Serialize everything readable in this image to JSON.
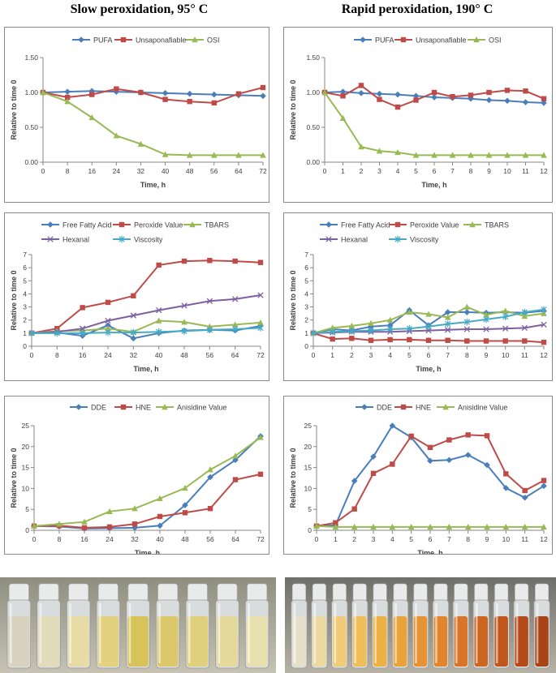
{
  "titles": {
    "left": "Slow peroxidation, 95° C",
    "right": "Rapid peroxidation, 190° C"
  },
  "chart_data": [
    {
      "id": "slow-1",
      "type": "line",
      "xlabel": "Time, h",
      "ylabel": "Relative to time 0",
      "categories": [
        "0",
        "8",
        "16",
        "24",
        "32",
        "40",
        "48",
        "56",
        "64",
        "72"
      ],
      "ylim": [
        0,
        1.5
      ],
      "yticks": [
        "0.00",
        "0.50",
        "1.00",
        "1.50"
      ],
      "series": [
        {
          "name": "PUFA",
          "color": "#4a7ebb",
          "marker": "diamond",
          "values": [
            1.0,
            1.01,
            1.02,
            1.01,
            1.0,
            0.99,
            0.98,
            0.97,
            0.96,
            0.95
          ]
        },
        {
          "name": "Unsaponafiable",
          "color": "#be4b48",
          "marker": "square",
          "values": [
            1.0,
            0.93,
            0.97,
            1.05,
            1.0,
            0.9,
            0.87,
            0.85,
            0.98,
            1.07
          ]
        },
        {
          "name": "OSI",
          "color": "#98b954",
          "marker": "triangle",
          "values": [
            1.0,
            0.87,
            0.64,
            0.38,
            0.26,
            0.11,
            0.1,
            0.1,
            0.1,
            0.1
          ]
        }
      ]
    },
    {
      "id": "rapid-1",
      "type": "line",
      "xlabel": "Time, h",
      "ylabel": "Relative to time 0",
      "categories": [
        "0",
        "1",
        "2",
        "3",
        "4",
        "5",
        "6",
        "7",
        "8",
        "9",
        "10",
        "11",
        "12"
      ],
      "ylim": [
        0,
        1.5
      ],
      "yticks": [
        "0.00",
        "0.50",
        "1.00",
        "1.50"
      ],
      "series": [
        {
          "name": "PUFA",
          "color": "#4a7ebb",
          "marker": "diamond",
          "values": [
            1.0,
            1.01,
            0.99,
            0.98,
            0.97,
            0.95,
            0.93,
            0.92,
            0.91,
            0.89,
            0.88,
            0.86,
            0.85
          ]
        },
        {
          "name": "Unsaponafiable",
          "color": "#be4b48",
          "marker": "square",
          "values": [
            1.0,
            0.95,
            1.1,
            0.9,
            0.79,
            0.89,
            1.0,
            0.94,
            0.96,
            1.0,
            1.03,
            1.02,
            0.91
          ]
        },
        {
          "name": "OSI",
          "color": "#98b954",
          "marker": "triangle",
          "values": [
            1.0,
            0.63,
            0.22,
            0.16,
            0.14,
            0.1,
            0.1,
            0.1,
            0.1,
            0.1,
            0.1,
            0.1,
            0.1
          ]
        }
      ]
    },
    {
      "id": "slow-2",
      "type": "line",
      "xlabel": "Time, h",
      "ylabel": "Relative to time 0",
      "categories": [
        "0",
        "8",
        "16",
        "24",
        "32",
        "40",
        "48",
        "56",
        "64",
        "72"
      ],
      "ylim": [
        0,
        7
      ],
      "yticks": [
        "0",
        "1",
        "2",
        "3",
        "4",
        "5",
        "6",
        "7"
      ],
      "series": [
        {
          "name": "Free Fatty Acid",
          "color": "#4a7ebb",
          "marker": "diamond",
          "values": [
            1.0,
            1.05,
            0.8,
            1.6,
            0.6,
            1.0,
            1.2,
            1.25,
            1.2,
            1.55
          ]
        },
        {
          "name": "Peroxide Value",
          "color": "#be4b48",
          "marker": "square",
          "values": [
            1.0,
            1.35,
            2.95,
            3.35,
            3.85,
            6.2,
            6.5,
            6.55,
            6.5,
            6.4
          ]
        },
        {
          "name": "TBARS",
          "color": "#98b954",
          "marker": "triangle",
          "values": [
            1.0,
            1.15,
            1.2,
            1.35,
            1.1,
            1.95,
            1.85,
            1.5,
            1.65,
            1.8
          ]
        },
        {
          "name": "Hexanal",
          "color": "#7d60a0",
          "marker": "x",
          "values": [
            1.0,
            1.1,
            1.35,
            1.95,
            2.35,
            2.75,
            3.1,
            3.45,
            3.6,
            3.9
          ]
        },
        {
          "name": "Viscosity",
          "color": "#46aac5",
          "marker": "star",
          "values": [
            1.0,
            1.0,
            1.0,
            1.05,
            1.05,
            1.1,
            1.15,
            1.25,
            1.3,
            1.4
          ]
        }
      ]
    },
    {
      "id": "rapid-2",
      "type": "line",
      "xlabel": "Time, h",
      "ylabel": "Relative to time 0",
      "categories": [
        "0",
        "1",
        "2",
        "3",
        "4",
        "5",
        "6",
        "7",
        "8",
        "9",
        "10",
        "11",
        "12"
      ],
      "ylim": [
        0,
        7
      ],
      "yticks": [
        "0",
        "1",
        "2",
        "3",
        "4",
        "5",
        "6",
        "7"
      ],
      "series": [
        {
          "name": "Free Fatty Acid",
          "color": "#4a7ebb",
          "marker": "diamond",
          "values": [
            1.0,
            1.3,
            1.2,
            1.5,
            1.6,
            2.75,
            1.6,
            2.6,
            2.6,
            2.55,
            2.6,
            2.55,
            2.7
          ]
        },
        {
          "name": "Peroxide Value",
          "color": "#be4b48",
          "marker": "square",
          "values": [
            1.0,
            0.55,
            0.6,
            0.45,
            0.5,
            0.5,
            0.45,
            0.45,
            0.4,
            0.4,
            0.4,
            0.4,
            0.3
          ]
        },
        {
          "name": "TBARS",
          "color": "#98b954",
          "marker": "triangle",
          "values": [
            1.0,
            1.4,
            1.55,
            1.75,
            2.0,
            2.6,
            2.45,
            2.2,
            3.0,
            2.4,
            2.7,
            2.3,
            2.5
          ]
        },
        {
          "name": "Hexanal",
          "color": "#7d60a0",
          "marker": "x",
          "values": [
            1.0,
            1.05,
            1.1,
            1.1,
            1.1,
            1.15,
            1.2,
            1.25,
            1.3,
            1.3,
            1.35,
            1.4,
            1.65
          ]
        },
        {
          "name": "Viscosity",
          "color": "#46aac5",
          "marker": "star",
          "values": [
            1.0,
            1.1,
            1.15,
            1.2,
            1.3,
            1.35,
            1.5,
            1.7,
            1.85,
            2.05,
            2.25,
            2.6,
            2.8
          ]
        }
      ]
    },
    {
      "id": "slow-3",
      "type": "line",
      "xlabel": "Time, h",
      "ylabel": "Relative to time 0",
      "categories": [
        "0",
        "8",
        "16",
        "24",
        "32",
        "40",
        "48",
        "56",
        "64",
        "72"
      ],
      "ylim": [
        0,
        25
      ],
      "yticks": [
        "0",
        "5",
        "10",
        "15",
        "20",
        "25"
      ],
      "series": [
        {
          "name": "DDE",
          "color": "#4a7ebb",
          "marker": "diamond",
          "values": [
            1.0,
            0.9,
            0.4,
            0.5,
            0.6,
            1.1,
            6.0,
            12.7,
            16.8,
            22.5
          ]
        },
        {
          "name": "HNE",
          "color": "#be4b48",
          "marker": "square",
          "values": [
            1.0,
            1.1,
            0.6,
            0.8,
            1.5,
            3.3,
            4.2,
            5.2,
            12.1,
            13.4
          ]
        },
        {
          "name": "Anisidine Value",
          "color": "#98b954",
          "marker": "triangle",
          "values": [
            1.0,
            1.5,
            2.0,
            4.5,
            5.2,
            7.6,
            10.1,
            14.5,
            17.8,
            22.2
          ]
        }
      ]
    },
    {
      "id": "rapid-3",
      "type": "line",
      "xlabel": "Time, h",
      "ylabel": "Relative to time 0",
      "categories": [
        "0",
        "1",
        "2",
        "3",
        "4",
        "5",
        "6",
        "7",
        "8",
        "9",
        "10",
        "11",
        "12"
      ],
      "ylim": [
        0,
        25
      ],
      "yticks": [
        "0",
        "5",
        "10",
        "15",
        "20",
        "25"
      ],
      "series": [
        {
          "name": "DDE",
          "color": "#4a7ebb",
          "marker": "diamond",
          "values": [
            1.0,
            1.2,
            11.8,
            17.6,
            25.0,
            22.2,
            16.6,
            16.8,
            18.0,
            15.6,
            10.1,
            7.8,
            10.6
          ]
        },
        {
          "name": "HNE",
          "color": "#be4b48",
          "marker": "square",
          "values": [
            1.0,
            1.8,
            5.1,
            13.6,
            15.8,
            22.5,
            19.8,
            21.6,
            22.8,
            22.6,
            13.5,
            9.5,
            11.9
          ]
        },
        {
          "name": "Anisidine Value",
          "color": "#98b954",
          "marker": "triangle",
          "values": [
            1.0,
            0.8,
            0.8,
            0.8,
            0.8,
            0.8,
            0.8,
            0.8,
            0.8,
            0.8,
            0.8,
            0.8,
            0.8
          ]
        }
      ]
    }
  ],
  "photos": {
    "slow_vials": {
      "count": 9,
      "liquid_colors": [
        "#d8d2bf",
        "#e3dcba",
        "#e8dca6",
        "#e2d17e",
        "#d8c35a",
        "#dcc86a",
        "#e0d07e",
        "#e4d99a",
        "#e8e0ad"
      ]
    },
    "rapid_vials": {
      "count": 13,
      "liquid_colors": [
        "#e6dfca",
        "#ecd9a0",
        "#f0cc78",
        "#efbe58",
        "#edb043",
        "#eaa33a",
        "#e69433",
        "#e0852c",
        "#d87526",
        "#cd6520",
        "#c1561c",
        "#b44a18",
        "#a84416"
      ]
    }
  }
}
